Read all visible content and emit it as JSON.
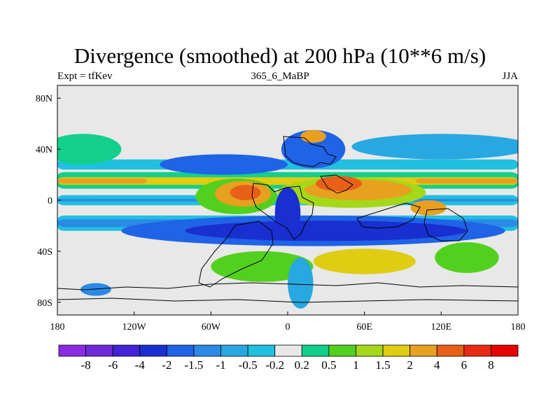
{
  "title": "Divergence (smoothed) at 200 hPa (10**6 m/s)",
  "subtitle_left": "Expt = tfKev",
  "subtitle_center": "365_6_MaBP",
  "subtitle_right": "JJA",
  "chart_data": {
    "type": "heatmap",
    "x_ticks": [
      "180",
      "120W",
      "60W",
      "0",
      "60E",
      "120E",
      "180"
    ],
    "y_ticks": [
      "80N",
      "40N",
      "0",
      "40S",
      "80S"
    ],
    "lon_range": [
      -180,
      180
    ],
    "lat_range": [
      -90,
      90
    ],
    "colorbar": {
      "labels": [
        "-8",
        "-6",
        "-4",
        "-2",
        "-1.5",
        "-1",
        "-0.5",
        "-0.2",
        "0.2",
        "0.5",
        "1",
        "1.5",
        "2",
        "4",
        "6",
        "8"
      ],
      "colors": [
        "#8a2be2",
        "#6f29d9",
        "#4422d6",
        "#1a2fd0",
        "#1f63e6",
        "#2a8ae6",
        "#28a8e0",
        "#20c0e0",
        "#e8e8e8",
        "#12d08c",
        "#52d01e",
        "#a4d818",
        "#e0cc10",
        "#e8a020",
        "#e86018",
        "#e82a14",
        "#e60000"
      ]
    },
    "regions": [
      {
        "kind": "box",
        "lon": [
          -180,
          180
        ],
        "lat": [
          9,
          22
        ],
        "level": 9
      },
      {
        "kind": "box",
        "lon": [
          -180,
          180
        ],
        "lat": [
          12,
          18
        ],
        "level": 12
      },
      {
        "kind": "box",
        "lon": [
          -180,
          -110
        ],
        "lat": [
          13,
          17
        ],
        "level": 13
      },
      {
        "kind": "box",
        "lon": [
          100,
          180
        ],
        "lat": [
          13,
          17
        ],
        "level": 13
      },
      {
        "kind": "box",
        "lon": [
          -180,
          180
        ],
        "lat": [
          -24,
          -12
        ],
        "level": 7
      },
      {
        "kind": "box",
        "lon": [
          -180,
          180
        ],
        "lat": [
          -21,
          -15
        ],
        "level": 5
      },
      {
        "kind": "box",
        "lon": [
          -180,
          180
        ],
        "lat": [
          -4,
          4
        ],
        "level": 7
      },
      {
        "kind": "box",
        "lon": [
          -180,
          180
        ],
        "lat": [
          -1,
          1
        ],
        "level": 5
      },
      {
        "kind": "box",
        "lon": [
          -180,
          180
        ],
        "lat": [
          24,
          32
        ],
        "level": 7
      },
      {
        "kind": "ellipse",
        "lon": -40,
        "lat": 3,
        "rlon": 32,
        "rlat": 14,
        "level": 10
      },
      {
        "kind": "ellipse",
        "lon": -35,
        "lat": 5,
        "rlon": 22,
        "rlat": 10,
        "level": 13
      },
      {
        "kind": "ellipse",
        "lon": -33,
        "lat": 6,
        "rlon": 12,
        "rlat": 6,
        "level": 14
      },
      {
        "kind": "ellipse",
        "lon": 50,
        "lat": 6,
        "rlon": 58,
        "rlat": 12,
        "level": 11
      },
      {
        "kind": "ellipse",
        "lon": 55,
        "lat": 8,
        "rlon": 42,
        "rlat": 8,
        "level": 13
      },
      {
        "kind": "ellipse",
        "lon": 40,
        "lat": 13,
        "rlon": 18,
        "rlat": 6,
        "level": 14
      },
      {
        "kind": "ellipse",
        "lon": 110,
        "lat": -6,
        "rlon": 14,
        "rlat": 6,
        "level": 13
      },
      {
        "kind": "ellipse",
        "lon": 20,
        "lat": -24,
        "rlon": 150,
        "rlat": 12,
        "level": 4
      },
      {
        "kind": "ellipse",
        "lon": 30,
        "lat": -24,
        "rlon": 110,
        "rlat": 8,
        "level": 3
      },
      {
        "kind": "ellipse",
        "lon": 0,
        "lat": -10,
        "rlon": 10,
        "rlat": 20,
        "level": 3
      },
      {
        "kind": "ellipse",
        "lon": -50,
        "lat": 28,
        "rlon": 50,
        "rlat": 8,
        "level": 4
      },
      {
        "kind": "ellipse",
        "lon": 20,
        "lat": 40,
        "rlon": 25,
        "rlat": 15,
        "level": 4
      },
      {
        "kind": "ellipse",
        "lon": 20,
        "lat": 50,
        "rlon": 10,
        "rlat": 5,
        "level": 13
      },
      {
        "kind": "ellipse",
        "lon": -160,
        "lat": 40,
        "rlon": 30,
        "rlat": 12,
        "level": 9
      },
      {
        "kind": "ellipse",
        "lon": 120,
        "lat": 42,
        "rlon": 70,
        "rlat": 10,
        "level": 6
      },
      {
        "kind": "ellipse",
        "lon": -20,
        "lat": -52,
        "rlon": 40,
        "rlat": 12,
        "level": 10
      },
      {
        "kind": "ellipse",
        "lon": 60,
        "lat": -48,
        "rlon": 40,
        "rlat": 10,
        "level": 12
      },
      {
        "kind": "ellipse",
        "lon": 140,
        "lat": -45,
        "rlon": 25,
        "rlat": 12,
        "level": 10
      },
      {
        "kind": "ellipse",
        "lon": -150,
        "lat": -70,
        "rlon": 12,
        "rlat": 5,
        "level": 5
      },
      {
        "kind": "ellipse",
        "lon": 10,
        "lat": -65,
        "rlon": 10,
        "rlat": 20,
        "level": 6
      }
    ]
  }
}
